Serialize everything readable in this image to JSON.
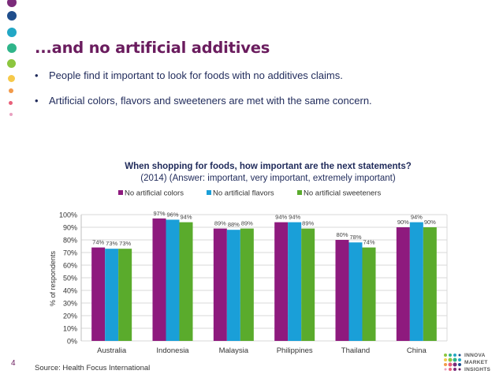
{
  "slide": {
    "title": "...and no artificial additives",
    "bullets": [
      "People find it important to look for foods with no additives claims.",
      "Artificial colors, flavors and sweeteners are met with the same concern."
    ],
    "bullet_symbol": "•",
    "page_number": "4",
    "source": "Source: Health Focus International",
    "logo_lines": [
      "INNOVA",
      "MARKET",
      "INSIGHTS"
    ]
  },
  "colors": {
    "title": "#6a1c5e",
    "colors_series": "#8e1a7e",
    "flavors_series": "#1a9fd8",
    "sweeteners_series": "#5aab2c"
  },
  "chart_data": {
    "type": "bar",
    "title": "When shopping for foods, how important are the next statements?",
    "subtitle": "(2014) (Answer: important, very important, extremely important)",
    "xlabel": "",
    "ylabel": "% of respondents",
    "ylim": [
      0,
      100
    ],
    "yticks": [
      "0%",
      "10%",
      "20%",
      "30%",
      "40%",
      "50%",
      "60%",
      "70%",
      "80%",
      "90%",
      "100%"
    ],
    "legend_position": "top",
    "categories": [
      "Australia",
      "Indonesia",
      "Malaysia",
      "Philippines",
      "Thailand",
      "China"
    ],
    "series": [
      {
        "name": "No artificial colors",
        "color": "#8e1a7e",
        "values": [
          74,
          97,
          89,
          94,
          80,
          90
        ],
        "labels": [
          "74%",
          "97%",
          "89%",
          "94%",
          "80%",
          "90%"
        ]
      },
      {
        "name": "No artificial flavors",
        "color": "#1a9fd8",
        "values": [
          73,
          96,
          88,
          94,
          78,
          94
        ],
        "labels": [
          "73%",
          "96%",
          "88%",
          "94%",
          "78%",
          "94%"
        ]
      },
      {
        "name": "No artificial sweeteners",
        "color": "#5aab2c",
        "values": [
          73,
          94,
          89,
          89,
          74,
          90
        ],
        "labels": [
          "73%",
          "94%",
          "89%",
          "89%",
          "74%",
          "90%"
        ]
      }
    ]
  }
}
